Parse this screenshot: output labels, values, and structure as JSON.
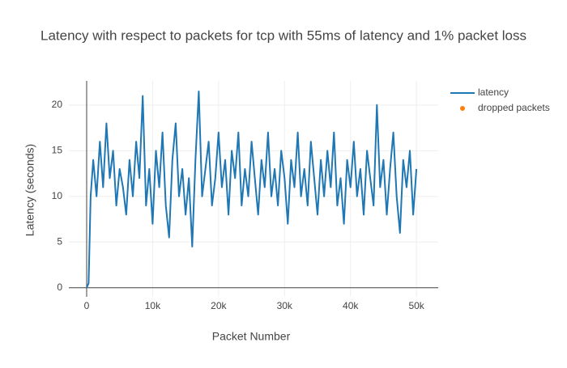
{
  "chart_data": {
    "type": "line",
    "title": "Latency with respect to packets for tcp with 55ms of latency and 1% packet loss",
    "x_label": "Packet Number",
    "y_label": "Latency (seconds)",
    "series": [
      {
        "name": "latency",
        "color": "#1f77b4",
        "mode": "lines",
        "x": [
          0,
          300,
          600,
          1000,
          1500,
          2000,
          2500,
          3000,
          3500,
          4000,
          4500,
          5000,
          5500,
          6000,
          6500,
          7000,
          7500,
          8000,
          8500,
          9000,
          9500,
          10000,
          10500,
          11000,
          11500,
          12000,
          12500,
          13000,
          13500,
          14000,
          14500,
          15000,
          15500,
          16000,
          16500,
          17000,
          17500,
          18000,
          18500,
          19000,
          19500,
          20000,
          20500,
          21000,
          21500,
          22000,
          22500,
          23000,
          23500,
          24000,
          24500,
          25000,
          25500,
          26000,
          26500,
          27000,
          27500,
          28000,
          28500,
          29000,
          29500,
          30000,
          30500,
          31000,
          31500,
          32000,
          32500,
          33000,
          33500,
          34000,
          34500,
          35000,
          35500,
          36000,
          36500,
          37000,
          37500,
          38000,
          38500,
          39000,
          39500,
          40000,
          40500,
          41000,
          41500,
          42000,
          42500,
          43000,
          43500,
          44000,
          44500,
          45000,
          45500,
          46000,
          46500,
          47000,
          47500,
          48000,
          48500,
          49000,
          49500,
          50000
        ],
        "values": [
          0,
          0.5,
          10,
          14,
          10,
          16,
          11,
          18,
          12,
          15,
          9,
          13,
          11,
          8,
          14,
          10,
          16,
          12,
          21,
          9,
          13,
          7,
          15,
          11,
          17,
          9,
          5.5,
          14,
          18,
          10,
          13,
          8,
          12,
          4.5,
          14,
          21.5,
          10,
          13,
          16,
          9,
          12,
          17,
          11,
          14,
          8,
          15,
          12,
          17,
          9,
          13,
          10,
          16,
          12,
          8,
          14,
          11,
          17,
          10,
          13,
          9,
          15,
          12,
          7,
          14,
          11,
          17,
          10,
          13,
          9,
          16,
          12,
          8,
          14,
          10,
          15,
          11,
          17,
          9,
          12,
          7,
          14,
          11,
          16,
          10,
          13,
          8,
          15,
          12,
          9,
          20,
          11,
          14,
          8,
          13,
          17,
          10,
          6,
          14,
          11,
          15,
          8,
          13
        ]
      },
      {
        "name": "dropped packets",
        "color": "#ff7f0e",
        "mode": "markers",
        "x": [],
        "values": []
      }
    ],
    "xlim": [
      -2700,
      53300
    ],
    "xticks": [
      0,
      {
        "value": 10000,
        "label": "10k"
      },
      {
        "value": 20000,
        "label": "20k"
      },
      {
        "value": 30000,
        "label": "30k"
      },
      {
        "value": 40000,
        "label": "40k"
      },
      {
        "value": 50000,
        "label": "50k"
      }
    ],
    "ylim": [
      -1,
      22.65
    ],
    "yticks": [
      0,
      5,
      10,
      15,
      20
    ],
    "grid": true,
    "legend": "top-right"
  }
}
